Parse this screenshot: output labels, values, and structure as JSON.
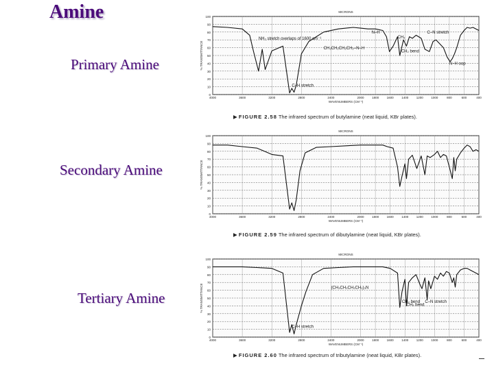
{
  "slide": {
    "title": "Amine"
  },
  "labels": {
    "primary": "Primary Amine",
    "secondary": "Secondary Amine",
    "tertiary": "Tertiary Amine"
  },
  "chart_data": [
    {
      "type": "line",
      "title": "The infrared spectrum of butylamine (neat liquid, KBr plates).",
      "figure": "FIGURE 2.58",
      "xlabel": "WAVENUMBERS (CM⁻¹)",
      "top_axis_label": "MICRONS",
      "ylabel": "% TRANSMITTANCE",
      "xlim": [
        4000,
        400
      ],
      "ylim": [
        0,
        100
      ],
      "x_ticks": [
        4000,
        3600,
        3200,
        2800,
        2400,
        2000,
        1800,
        1600,
        1400,
        1200,
        1000,
        800,
        600,
        400
      ],
      "y_ticks": [
        0,
        10,
        20,
        30,
        40,
        50,
        60,
        70,
        80,
        90,
        100
      ],
      "x": [
        4000,
        3800,
        3600,
        3500,
        3450,
        3380,
        3330,
        3290,
        3200,
        3050,
        2960,
        2930,
        2900,
        2870,
        2800,
        2700,
        2500,
        2300,
        2100,
        2000,
        1900,
        1800,
        1700,
        1650,
        1610,
        1560,
        1500,
        1470,
        1420,
        1380,
        1340,
        1300,
        1250,
        1180,
        1130,
        1070,
        1020,
        980,
        940,
        880,
        830,
        790,
        760,
        730,
        700,
        650,
        600,
        560,
        520,
        480,
        440,
        400
      ],
      "y": [
        87,
        86,
        84,
        76,
        56,
        30,
        58,
        32,
        56,
        62,
        2,
        8,
        3,
        12,
        52,
        68,
        80,
        84,
        86,
        85,
        84,
        84,
        82,
        74,
        55,
        62,
        74,
        50,
        70,
        62,
        74,
        72,
        76,
        72,
        58,
        55,
        68,
        70,
        66,
        60,
        48,
        42,
        46,
        52,
        60,
        76,
        82,
        86,
        85,
        86,
        84,
        82
      ],
      "annotations": [
        {
          "text": "NH₂ stretch overlaps of 1600 cm⁻¹",
          "x": 3380,
          "y": 70
        },
        {
          "text": "C–H stretch",
          "x": 2930,
          "y": 10
        },
        {
          "text": "CH₃CH₂CH₂CH₂–N–H",
          "x": 2500,
          "y": 58
        },
        {
          "text": "N–H",
          "x": 1850,
          "y": 78
        },
        {
          "text": "CH₂",
          "x": 1500,
          "y": 72
        },
        {
          "text": "CH₂ bend",
          "x": 1450,
          "y": 54
        },
        {
          "text": "C–N stretch",
          "x": 1100,
          "y": 78
        },
        {
          "text": "N–H oop",
          "x": 800,
          "y": 38
        }
      ]
    },
    {
      "type": "line",
      "title": "The infrared spectrum of dibutylamine (neat liquid, KBr plates).",
      "figure": "FIGURE 2.59",
      "xlabel": "WAVENUMBERS (CM⁻¹)",
      "top_axis_label": "MICRONS",
      "ylabel": "% TRANSMITTANCE",
      "xlim": [
        4000,
        400
      ],
      "ylim": [
        0,
        100
      ],
      "x_ticks": [
        4000,
        3600,
        3200,
        2800,
        2400,
        2000,
        1800,
        1600,
        1400,
        1200,
        1000,
        800,
        600,
        400
      ],
      "y_ticks": [
        0,
        10,
        20,
        30,
        40,
        50,
        60,
        70,
        80,
        90,
        100
      ],
      "x": [
        4000,
        3800,
        3600,
        3400,
        3300,
        3200,
        3050,
        2960,
        2930,
        2900,
        2870,
        2820,
        2750,
        2600,
        2400,
        2200,
        2000,
        1900,
        1800,
        1700,
        1640,
        1560,
        1500,
        1470,
        1440,
        1400,
        1380,
        1350,
        1300,
        1240,
        1180,
        1130,
        1100,
        1060,
        1000,
        960,
        920,
        880,
        840,
        800,
        760,
        740,
        720,
        700,
        650,
        600,
        560,
        520,
        480,
        440,
        400
      ],
      "y": [
        88,
        88,
        86,
        84,
        80,
        76,
        74,
        6,
        14,
        4,
        18,
        55,
        78,
        85,
        86,
        87,
        88,
        88,
        88,
        88,
        86,
        84,
        60,
        35,
        48,
        64,
        45,
        70,
        75,
        58,
        74,
        50,
        74,
        72,
        76,
        80,
        72,
        76,
        74,
        60,
        45,
        72,
        55,
        70,
        78,
        84,
        88,
        86,
        80,
        82,
        80
      ]
    },
    {
      "type": "line",
      "title": "The infrared spectrum of tributylamine (neat liquid, KBr plates).",
      "figure": "FIGURE 2.60",
      "xlabel": "WAVENUMBERS (CM⁻¹)",
      "top_axis_label": "MICRONS",
      "ylabel": "% TRANSMITTANCE",
      "xlim": [
        4000,
        400
      ],
      "ylim": [
        0,
        100
      ],
      "x_ticks": [
        4000,
        3600,
        3200,
        2800,
        2400,
        2000,
        1800,
        1600,
        1400,
        1200,
        1000,
        800,
        600,
        400
      ],
      "y_ticks": [
        0,
        10,
        20,
        30,
        40,
        50,
        60,
        70,
        80,
        90,
        100
      ],
      "x": [
        4000,
        3800,
        3600,
        3400,
        3200,
        3050,
        2960,
        2930,
        2900,
        2870,
        2800,
        2740,
        2650,
        2500,
        2300,
        2100,
        2000,
        1900,
        1800,
        1700,
        1600,
        1500,
        1470,
        1440,
        1400,
        1380,
        1350,
        1300,
        1250,
        1200,
        1170,
        1130,
        1100,
        1080,
        1050,
        1000,
        960,
        920,
        880,
        840,
        800,
        760,
        740,
        720,
        700,
        650,
        600,
        560,
        520,
        480,
        440,
        400
      ],
      "y": [
        90,
        90,
        90,
        89,
        88,
        82,
        6,
        16,
        4,
        16,
        40,
        58,
        80,
        88,
        89,
        90,
        90,
        90,
        90,
        90,
        88,
        82,
        38,
        58,
        74,
        40,
        70,
        76,
        80,
        68,
        62,
        76,
        48,
        72,
        62,
        78,
        74,
        82,
        78,
        84,
        82,
        70,
        76,
        64,
        80,
        86,
        88,
        88,
        86,
        84,
        82,
        80
      ],
      "annotations": [
        {
          "text": "C–H stretch",
          "x": 2930,
          "y": 12
        },
        {
          "text": "(CH₃CH₂CH₂CH₂)₃N",
          "x": 2400,
          "y": 62
        },
        {
          "text": "CH₂ bend",
          "x": 1440,
          "y": 44
        },
        {
          "text": "CH₃ bend",
          "x": 1380,
          "y": 40
        },
        {
          "text": "C–N stretch",
          "x": 1130,
          "y": 44
        }
      ]
    }
  ]
}
